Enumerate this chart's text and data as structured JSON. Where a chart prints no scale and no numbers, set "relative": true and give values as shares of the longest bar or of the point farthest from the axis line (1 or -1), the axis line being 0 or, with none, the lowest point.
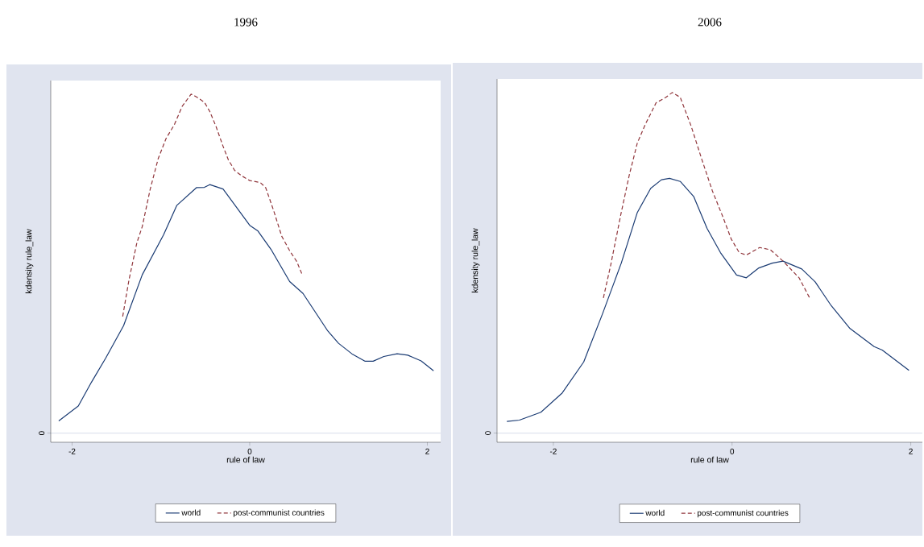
{
  "chart_data": [
    {
      "type": "line",
      "title": "1996",
      "xlabel": "rule of law",
      "ylabel": "kdensity rule_law",
      "relative": true,
      "xlim": [
        -2.24,
        2.15
      ],
      "xticks": [
        -2,
        0,
        2
      ],
      "legend": "bottom",
      "ref_lines": [
        {
          "axis": "y",
          "value": 0,
          "label": "0",
          "color": "#dfe3ee"
        }
      ],
      "series": [
        {
          "name": "world",
          "color": "#1a3b73",
          "line_style": "solid",
          "x": [
            -2.15,
            -1.93,
            -1.78,
            -1.62,
            -1.42,
            -1.21,
            -0.97,
            -0.82,
            -0.6,
            -0.51,
            -0.45,
            -0.3,
            -0.12,
            0.0,
            0.09,
            0.24,
            0.45,
            0.6,
            0.88,
            1.0,
            1.15,
            1.3,
            1.39,
            1.51,
            1.66,
            1.78,
            1.93,
            2.07
          ],
          "values": [
            0.036,
            0.08,
            0.151,
            0.222,
            0.317,
            0.467,
            0.585,
            0.672,
            0.724,
            0.725,
            0.733,
            0.72,
            0.656,
            0.613,
            0.597,
            0.542,
            0.447,
            0.412,
            0.301,
            0.265,
            0.234,
            0.212,
            0.212,
            0.226,
            0.234,
            0.23,
            0.213,
            0.184
          ]
        },
        {
          "name": "post-communist countries",
          "color": "#90353b",
          "line_style": "dashed",
          "x": [
            -1.43,
            -1.36,
            -1.27,
            -1.21,
            -1.12,
            -1.03,
            -0.94,
            -0.85,
            -0.76,
            -0.66,
            -0.6,
            -0.51,
            -0.45,
            -0.38,
            -0.3,
            -0.24,
            -0.17,
            -0.09,
            0.0,
            0.12,
            0.18,
            0.27,
            0.36,
            0.45,
            0.53,
            0.59
          ],
          "values": [
            0.344,
            0.451,
            0.562,
            0.609,
            0.72,
            0.81,
            0.87,
            0.909,
            0.964,
            1.0,
            0.992,
            0.976,
            0.949,
            0.905,
            0.846,
            0.806,
            0.775,
            0.759,
            0.745,
            0.739,
            0.724,
            0.656,
            0.581,
            0.538,
            0.506,
            0.468
          ]
        }
      ]
    },
    {
      "type": "line",
      "title": "2006",
      "xlabel": "rule of law",
      "ylabel": "kdensity rule_law",
      "relative": true,
      "xlim": [
        -2.63,
        2.13
      ],
      "xticks": [
        -2,
        0,
        2
      ],
      "legend": "bottom",
      "ref_lines": [
        {
          "axis": "y",
          "value": 0,
          "label": "0",
          "color": "#dfe3ee"
        }
      ],
      "series": [
        {
          "name": "world",
          "color": "#1a3b73",
          "line_style": "solid",
          "x": [
            -2.52,
            -2.38,
            -2.14,
            -1.9,
            -1.66,
            -1.45,
            -1.24,
            -1.06,
            -0.91,
            -0.79,
            -0.7,
            -0.58,
            -0.43,
            -0.28,
            -0.13,
            0.05,
            0.16,
            0.3,
            0.45,
            0.57,
            0.78,
            0.93,
            1.11,
            1.32,
            1.59,
            1.68,
            1.98
          ],
          "values": [
            0.034,
            0.038,
            0.061,
            0.118,
            0.209,
            0.35,
            0.499,
            0.648,
            0.719,
            0.744,
            0.748,
            0.739,
            0.695,
            0.601,
            0.53,
            0.464,
            0.456,
            0.485,
            0.499,
            0.505,
            0.482,
            0.444,
            0.374,
            0.307,
            0.254,
            0.244,
            0.184
          ]
        },
        {
          "name": "post-communist countries",
          "color": "#90353b",
          "line_style": "dashed",
          "x": [
            -1.44,
            -1.36,
            -1.24,
            -1.15,
            -1.06,
            -0.97,
            -0.85,
            -0.74,
            -0.67,
            -0.58,
            -0.46,
            -0.34,
            -0.22,
            -0.1,
            -0.01,
            0.08,
            0.16,
            0.31,
            0.43,
            0.57,
            0.75,
            0.87
          ],
          "values": [
            0.397,
            0.491,
            0.648,
            0.758,
            0.852,
            0.907,
            0.97,
            0.986,
            1.0,
            0.986,
            0.903,
            0.805,
            0.711,
            0.633,
            0.57,
            0.53,
            0.523,
            0.545,
            0.538,
            0.505,
            0.456,
            0.396
          ]
        }
      ]
    }
  ]
}
